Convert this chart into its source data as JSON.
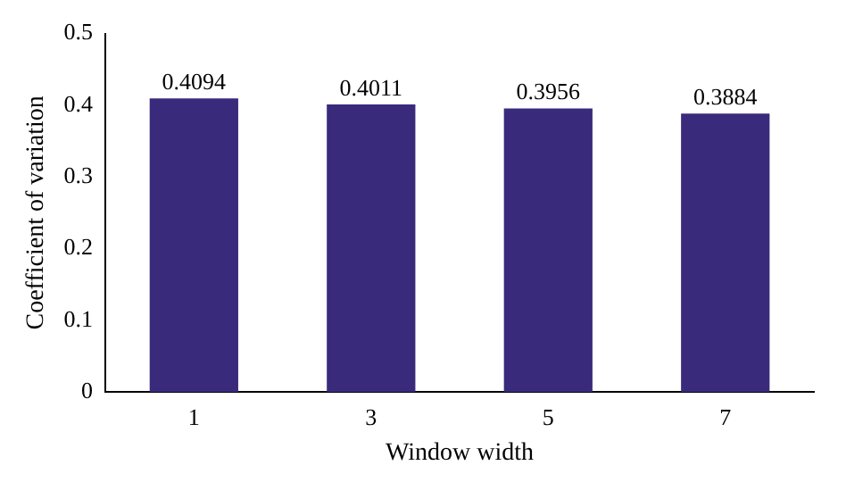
{
  "chart_data": {
    "type": "bar",
    "xlabel": "Window width",
    "ylabel": "Coefficient of variation",
    "categories": [
      "1",
      "3",
      "5",
      "7"
    ],
    "values": [
      0.4094,
      0.4011,
      0.3956,
      0.3884
    ],
    "color": "#3a2a7c",
    "ylim": [
      0,
      0.5
    ],
    "yticks": [
      0,
      0.1,
      0.2,
      0.3,
      0.4,
      0.5
    ],
    "data_labels": true,
    "grid": false,
    "legend": false
  }
}
